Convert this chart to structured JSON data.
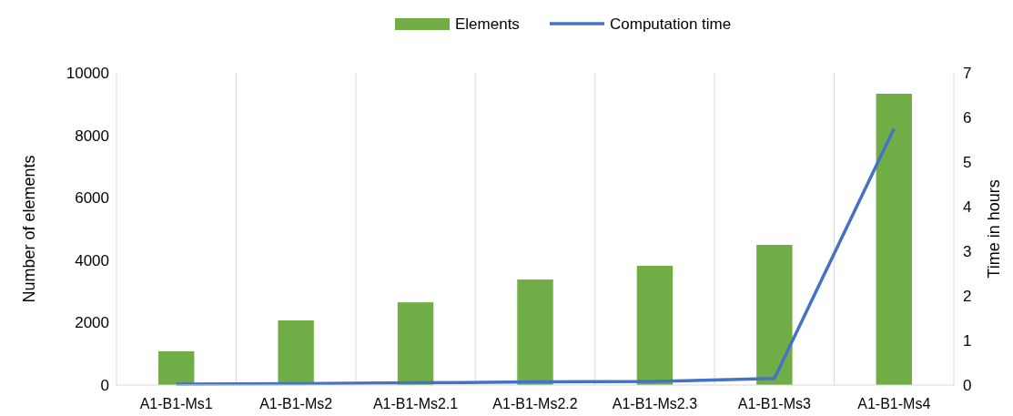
{
  "chart_data": {
    "type": "bar",
    "categories": [
      "A1-B1-Ms1",
      "A1-B1-Ms2",
      "A1-B1-Ms2.1",
      "A1-B1-Ms2.2",
      "A1-B1-Ms2.3",
      "A1-B1-Ms3",
      "A1-B1-Ms4"
    ],
    "series": [
      {
        "name": "Elements",
        "color": "#70ad47",
        "values": [
          1080,
          2070,
          2650,
          3380,
          3820,
          4490,
          9330
        ]
      },
      {
        "name": "Computation time",
        "type": "line",
        "axis": "y2",
        "color": "#4472c4",
        "values": [
          0.02,
          0.03,
          0.05,
          0.07,
          0.08,
          0.15,
          5.75
        ]
      }
    ],
    "ylabel": "Number of elements",
    "y2label": "Time in hours",
    "ylim": [
      0,
      10000
    ],
    "yticks": [
      0,
      2000,
      4000,
      6000,
      8000,
      10000
    ],
    "y2lim": [
      0,
      7
    ],
    "y2ticks": [
      0,
      1,
      2,
      3,
      4,
      5,
      6,
      7
    ],
    "grid": "x",
    "legend": "top",
    "marker": "none"
  }
}
